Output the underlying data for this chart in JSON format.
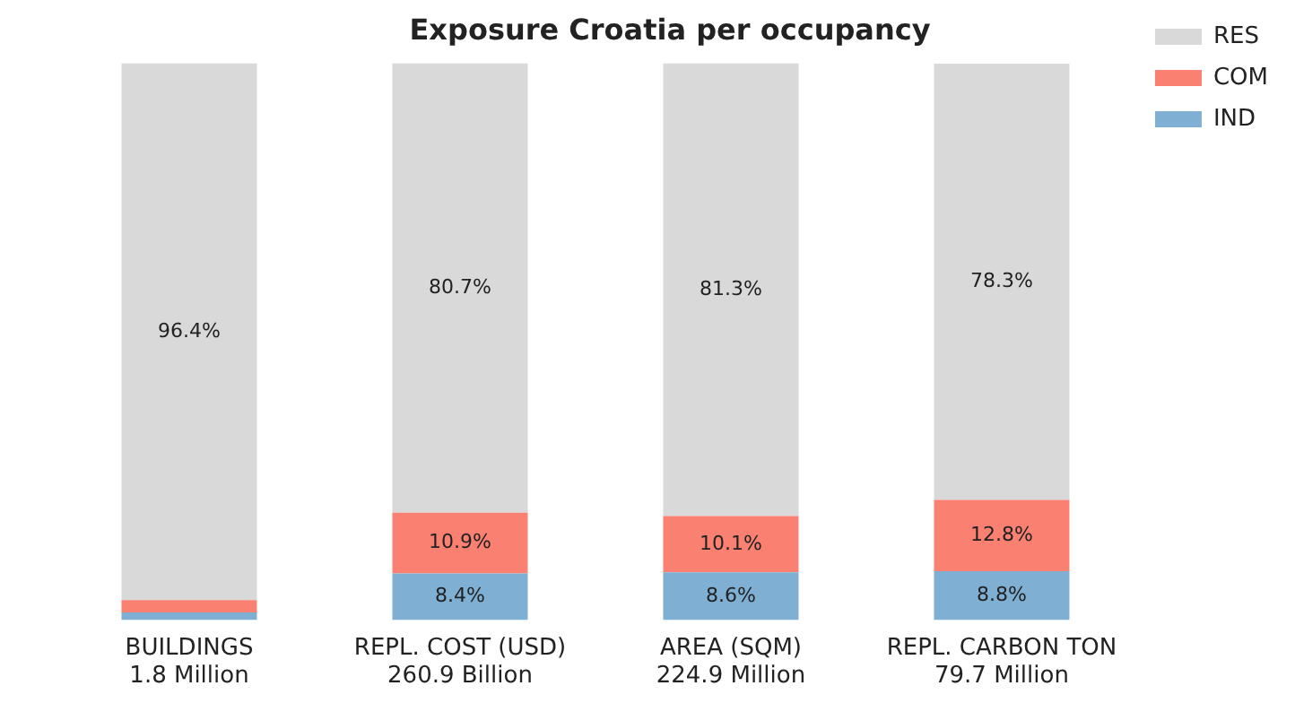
{
  "chart_data": {
    "type": "bar",
    "title": "Exposure Croatia per occupancy",
    "stacked": true,
    "categories": [
      "BUILDINGS\n1.8 Million",
      "REPL. COST (USD)\n260.9 Billion",
      "AREA (SQM)\n224.9 Million",
      "REPL. CARBON TON\n79.7 Million"
    ],
    "series": [
      {
        "name": "IND",
        "color": "#7fb0d3",
        "values": [
          1.4,
          8.4,
          8.6,
          8.8
        ],
        "value_labels": [
          null,
          "8.4%",
          "8.6%",
          "8.8%"
        ]
      },
      {
        "name": "COM",
        "color": "#fa8072",
        "values": [
          2.2,
          10.9,
          10.1,
          12.8
        ],
        "value_labels": [
          null,
          "10.9%",
          "10.1%",
          "12.8%"
        ]
      },
      {
        "name": "RES",
        "color": "#d9d9d9",
        "values": [
          96.4,
          80.7,
          81.3,
          78.3
        ],
        "value_labels": [
          "96.4%",
          "80.7%",
          "81.3%",
          "78.3%"
        ]
      }
    ],
    "ylim": [
      0,
      100
    ],
    "tick_labels": "x",
    "grid": false,
    "legend": "top right"
  }
}
